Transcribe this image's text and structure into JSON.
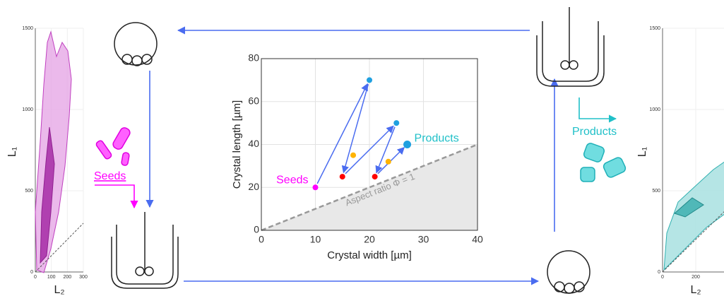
{
  "chart_data": [
    {
      "type": "scatter",
      "x_label": "Crystal width [µm]",
      "y_label": "Crystal length [µm]",
      "xlim": [
        0,
        40
      ],
      "ylim": [
        0,
        80
      ],
      "xticks": [
        0,
        10,
        20,
        30,
        40
      ],
      "yticks": [
        0,
        20,
        40,
        60,
        80
      ],
      "grid": true,
      "series": [
        {
          "color": "#ff00ff",
          "x": [
            10
          ],
          "values": [
            20
          ]
        },
        {
          "color": "#ff0000",
          "x": [
            15,
            21
          ],
          "values": [
            25,
            25
          ]
        },
        {
          "color": "#ffb300",
          "x": [
            17,
            23.5
          ],
          "values": [
            35,
            32
          ]
        },
        {
          "color": "#1fa0e0",
          "x": [
            20,
            25,
            27
          ],
          "values": [
            70,
            50,
            40
          ]
        }
      ],
      "seeds_label": "Seeds",
      "products_label": "Products",
      "line_label": "Aspect ratio Φ = 1"
    },
    {
      "type": "contour",
      "x_label": "L₂",
      "y_label": "L₁",
      "color": "#c040c0",
      "xlim": [
        0,
        300
      ],
      "ylim": [
        0,
        1500
      ],
      "xticks": [
        0,
        100,
        200,
        300
      ],
      "yticks": [
        0,
        500,
        1000,
        1500
      ],
      "grid": true
    },
    {
      "type": "contour",
      "x_label": "L₂",
      "y_label": "L₁",
      "color": "#30b0b0",
      "xlim": [
        0,
        600
      ],
      "ylim": [
        0,
        1500
      ],
      "xticks": [
        0,
        200
      ],
      "yticks": [
        0,
        500,
        1000,
        1500
      ],
      "grid": true
    }
  ],
  "diagram": {
    "seeds_label": "Seeds",
    "products_label": "Products"
  }
}
